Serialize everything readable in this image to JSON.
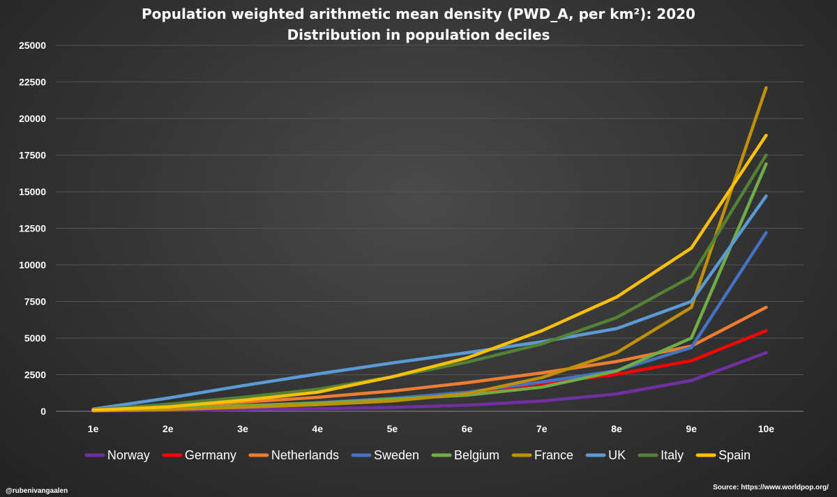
{
  "colors": {
    "background": "#333333",
    "gridline": "#555555",
    "text": "#ffffff"
  },
  "footer": {
    "credit": "@rubenivangaalen",
    "source": "Source: https://www.worldpop.org/"
  },
  "chart_data": {
    "type": "line",
    "title": "Population weighted arithmetic mean density (PWD_A, per km²): 2020",
    "subtitle": "Distribution in population deciles",
    "xlabel": "",
    "ylabel": "",
    "categories": [
      "1e",
      "2e",
      "3e",
      "4e",
      "5e",
      "6e",
      "7e",
      "8e",
      "9e",
      "10e"
    ],
    "ylim": [
      0,
      25000
    ],
    "yticks": [
      0,
      2500,
      5000,
      7500,
      10000,
      12500,
      15000,
      17500,
      20000,
      22500,
      25000
    ],
    "grid": true,
    "legend_position": "bottom",
    "series": [
      {
        "name": "Norway",
        "color": "#7030a0",
        "values": [
          20,
          60,
          110,
          180,
          260,
          420,
          700,
          1180,
          2100,
          4000
        ]
      },
      {
        "name": "Germany",
        "color": "#ff0000",
        "values": [
          60,
          180,
          350,
          580,
          840,
          1250,
          1900,
          2520,
          3450,
          5500
        ]
      },
      {
        "name": "Netherlands",
        "color": "#ed7d31",
        "values": [
          90,
          300,
          620,
          950,
          1380,
          1950,
          2620,
          3400,
          4450,
          7100
        ]
      },
      {
        "name": "Sweden",
        "color": "#4472c4",
        "values": [
          50,
          170,
          360,
          580,
          880,
          1300,
          2000,
          2780,
          4350,
          12200
        ]
      },
      {
        "name": "Belgium",
        "color": "#70ad47",
        "values": [
          70,
          200,
          380,
          560,
          820,
          1100,
          1650,
          2750,
          5000,
          16900
        ]
      },
      {
        "name": "France",
        "color": "#bf9000",
        "values": [
          40,
          120,
          270,
          450,
          700,
          1200,
          2300,
          4000,
          7100,
          22100
        ]
      },
      {
        "name": "UK",
        "color": "#5b9bd5",
        "values": [
          150,
          900,
          1750,
          2550,
          3300,
          4000,
          4750,
          5650,
          7500,
          14700
        ]
      },
      {
        "name": "Italy",
        "color": "#548235",
        "values": [
          110,
          480,
          950,
          1500,
          2350,
          3350,
          4600,
          6400,
          9200,
          17500
        ]
      },
      {
        "name": "Spain",
        "color": "#ffc000",
        "values": [
          80,
          300,
          750,
          1300,
          2350,
          3650,
          5500,
          7800,
          11150,
          18850
        ]
      }
    ]
  }
}
